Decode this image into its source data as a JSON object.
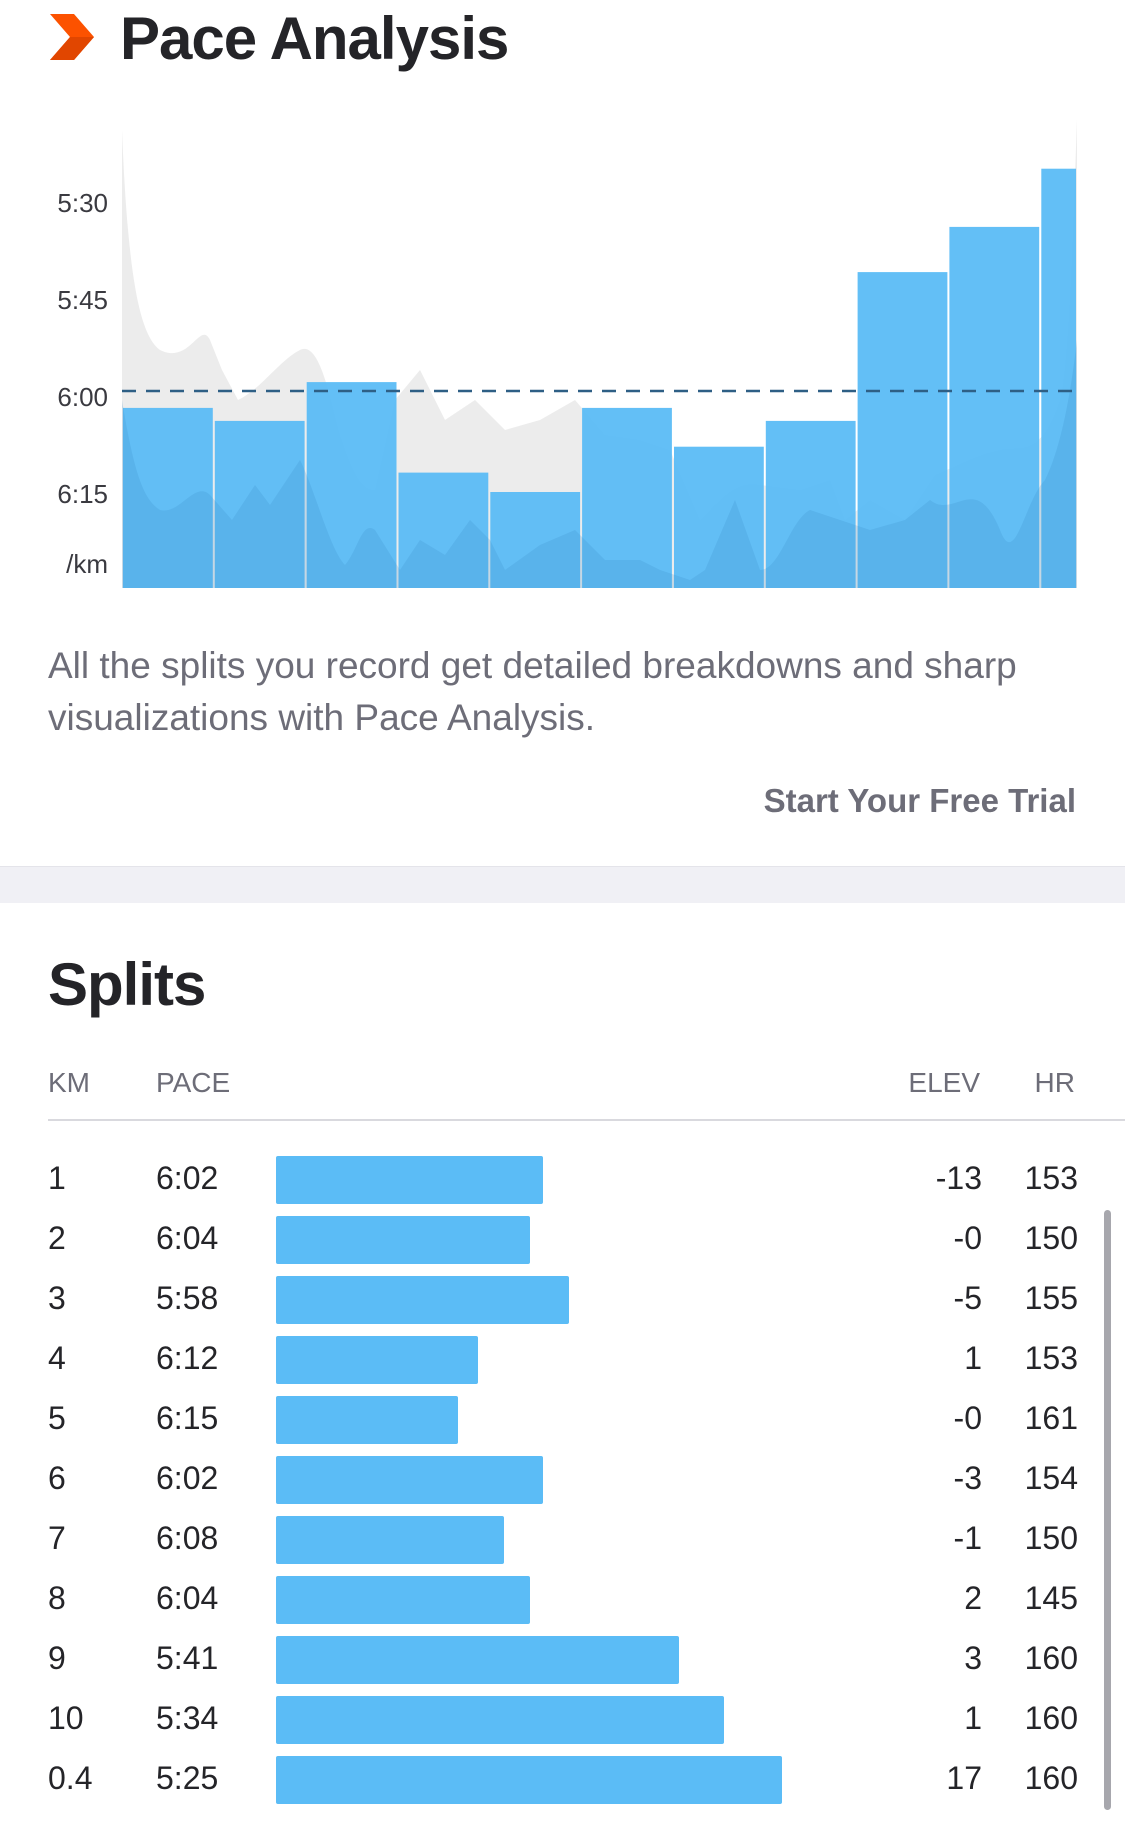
{
  "header": {
    "title": "Pace Analysis",
    "icon": "chevron-right-icon",
    "icon_color": "#fc5200"
  },
  "chart_data": {
    "type": "bar",
    "ylabel": "/km",
    "y_tick_labels": [
      "5:30",
      "5:45",
      "6:00",
      "6:15"
    ],
    "y_ticks_seconds": [
      330,
      345,
      360,
      375
    ],
    "y_inverted": true,
    "reference_line": {
      "label": "6:00",
      "value_seconds": 360,
      "style": "dashed"
    },
    "categories": [
      "1",
      "2",
      "3",
      "4",
      "5",
      "6",
      "7",
      "8",
      "9",
      "10",
      "0.4"
    ],
    "category_widths_km": [
      1,
      1,
      1,
      1,
      1,
      1,
      1,
      1,
      1,
      1,
      0.4
    ],
    "values": [
      "6:02",
      "6:04",
      "5:58",
      "6:12",
      "6:15",
      "6:02",
      "6:08",
      "6:04",
      "5:41",
      "5:34",
      "5:25"
    ],
    "values_seconds": [
      362,
      364,
      358,
      372,
      375,
      362,
      368,
      364,
      341,
      334,
      325
    ],
    "colors": {
      "bar": "#5bbcf6",
      "area": "#7a7a7a",
      "reference": "#2e5f85"
    }
  },
  "description": "All the splits you record get detailed breakdowns and sharp visualizations with Pace Analysis.",
  "cta": {
    "label": "Start Your Free Trial"
  },
  "splits": {
    "title": "Splits",
    "headers": {
      "km": "KM",
      "pace": "PACE",
      "elev": "ELEV",
      "hr": "HR"
    },
    "bar_color": "#5bbcf6",
    "rows": [
      {
        "km": "1",
        "pace": "6:02",
        "elev": "-13",
        "hr": "153",
        "pace_seconds": 362
      },
      {
        "km": "2",
        "pace": "6:04",
        "elev": "-0",
        "hr": "150",
        "pace_seconds": 364
      },
      {
        "km": "3",
        "pace": "5:58",
        "elev": "-5",
        "hr": "155",
        "pace_seconds": 358
      },
      {
        "km": "4",
        "pace": "6:12",
        "elev": "1",
        "hr": "153",
        "pace_seconds": 372
      },
      {
        "km": "5",
        "pace": "6:15",
        "elev": "-0",
        "hr": "161",
        "pace_seconds": 375
      },
      {
        "km": "6",
        "pace": "6:02",
        "elev": "-3",
        "hr": "154",
        "pace_seconds": 362
      },
      {
        "km": "7",
        "pace": "6:08",
        "elev": "-1",
        "hr": "150",
        "pace_seconds": 368
      },
      {
        "km": "8",
        "pace": "6:04",
        "elev": "2",
        "hr": "145",
        "pace_seconds": 364
      },
      {
        "km": "9",
        "pace": "5:41",
        "elev": "3",
        "hr": "160",
        "pace_seconds": 341
      },
      {
        "km": "10",
        "pace": "5:34",
        "elev": "1",
        "hr": "160",
        "pace_seconds": 334
      },
      {
        "km": "0.4",
        "pace": "5:25",
        "elev": "17",
        "hr": "160",
        "pace_seconds": 325
      }
    ]
  }
}
